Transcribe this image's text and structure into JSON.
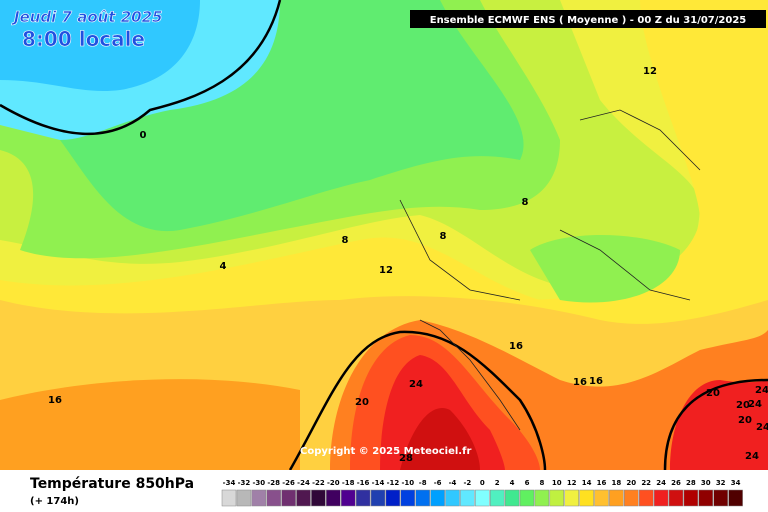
{
  "header": {
    "date": "Jeudi 7 août 2025",
    "time": "8:00 locale",
    "model": "Ensemble ECMWF ENS  ( Moyenne )  -  00 Z du 31/07/2025"
  },
  "contour_labels": [
    12,
    0,
    8,
    8,
    4,
    8,
    12,
    16,
    20,
    24,
    16,
    16,
    20,
    24,
    24,
    20,
    20,
    24,
    28,
    24,
    16
  ],
  "copyright": "Copyright © 2025 Meteociel.fr",
  "footer": {
    "title": "Température 850hPa",
    "lead": "(+ 174h)"
  },
  "legend": {
    "labels": [
      -34,
      -32,
      -30,
      -28,
      -26,
      -24,
      -22,
      -20,
      -18,
      -16,
      -14,
      -12,
      -10,
      -8,
      -6,
      -4,
      -2,
      0,
      2,
      4,
      6,
      8,
      10,
      12,
      14,
      16,
      18,
      20,
      22,
      24,
      26,
      28,
      30,
      32,
      34
    ],
    "colors": [
      "#d8d8d8",
      "#b8b8b8",
      "#a080a8",
      "#88508c",
      "#703070",
      "#501850",
      "#300838",
      "#400060",
      "#500090",
      "#3030a0",
      "#2040b0",
      "#0020c8",
      "#0040e0",
      "#0070f0",
      "#00a0ff",
      "#30c8ff",
      "#60e8ff",
      "#80ffff",
      "#50f0c0",
      "#40e890",
      "#60f060",
      "#90f050",
      "#c0f040",
      "#f0f040",
      "#ffe020",
      "#ffc030",
      "#ffa020",
      "#ff8020",
      "#ff5020",
      "#f02020",
      "#d01010",
      "#b00000",
      "#900000",
      "#700000",
      "#500000"
    ]
  }
}
